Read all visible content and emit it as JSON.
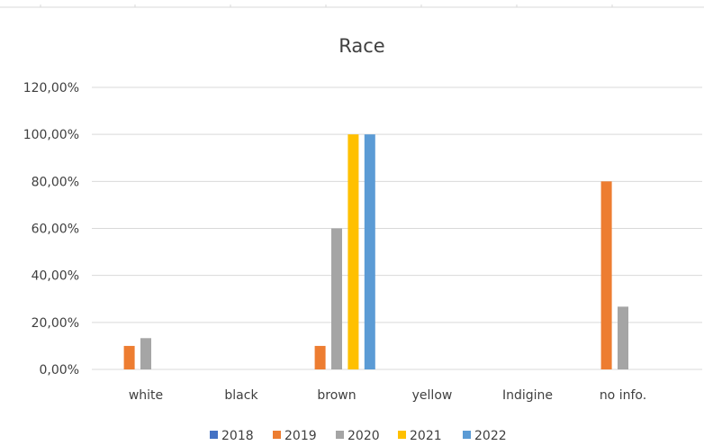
{
  "chart_data": {
    "type": "bar",
    "title": "Race",
    "xlabel": "",
    "ylabel": "",
    "categories": [
      "white",
      "black",
      "brown",
      "yellow",
      "Indigine",
      "no info."
    ],
    "yticks": [
      "0,00%",
      "20,00%",
      "40,00%",
      "60,00%",
      "80,00%",
      "100,00%",
      "120,00%"
    ],
    "ylim": [
      0,
      120
    ],
    "grid": true,
    "legend_position": "bottom",
    "series": [
      {
        "name": "2018",
        "color": "#4472C4",
        "values": [
          0,
          0,
          0,
          0,
          0,
          0
        ]
      },
      {
        "name": "2019",
        "color": "#ED7D31",
        "values": [
          10,
          0,
          10,
          0,
          0,
          80
        ]
      },
      {
        "name": "2020",
        "color": "#A5A5A5",
        "values": [
          13.3,
          0,
          60,
          0,
          0,
          26.7
        ]
      },
      {
        "name": "2021",
        "color": "#FFC000",
        "values": [
          0,
          0,
          100,
          0,
          0,
          0
        ]
      },
      {
        "name": "2022",
        "color": "#5B9BD5",
        "values": [
          0,
          0,
          100,
          0,
          0,
          0
        ]
      }
    ]
  }
}
